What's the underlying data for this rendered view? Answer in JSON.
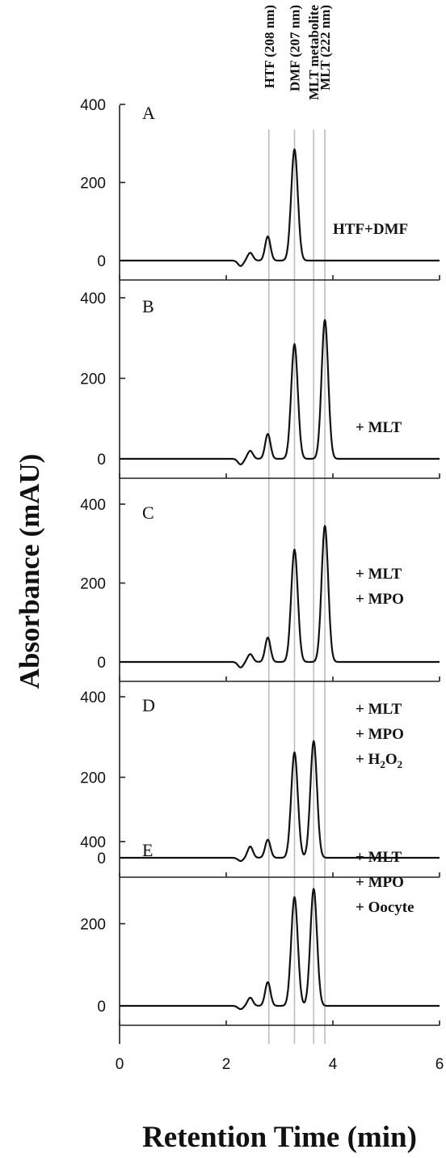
{
  "chart_data": {
    "type": "line",
    "xlabel": "Retention Time (min)",
    "ylabel": "Absorbance (mAU)",
    "xlim": [
      0,
      6
    ],
    "ylim": [
      0,
      400
    ],
    "x_ticks": [
      "0",
      "2",
      "4",
      "6"
    ],
    "y_ticks": [
      "0",
      "200",
      "400"
    ],
    "reference_lines": [
      {
        "label": "HTF (208 nm)",
        "x": 2.8
      },
      {
        "label": "DMF (207 nm)",
        "x": 3.28
      },
      {
        "label": "MLT metabolite",
        "x": 3.64
      },
      {
        "label": "MLT (222 nm)",
        "x": 3.85
      }
    ],
    "panels": [
      {
        "letter": "A",
        "conditions": [
          "HTF+DMF"
        ],
        "peaks": [
          {
            "x": 2.27,
            "y": -14
          },
          {
            "x": 2.45,
            "y": 20
          },
          {
            "x": 2.78,
            "y": 62
          },
          {
            "x": 3.28,
            "y": 285
          }
        ]
      },
      {
        "letter": "B",
        "conditions": [
          "+ MLT"
        ],
        "peaks": [
          {
            "x": 2.27,
            "y": -14
          },
          {
            "x": 2.45,
            "y": 20
          },
          {
            "x": 2.78,
            "y": 62
          },
          {
            "x": 3.28,
            "y": 285
          },
          {
            "x": 3.85,
            "y": 345
          }
        ]
      },
      {
        "letter": "C",
        "conditions": [
          "+ MLT",
          "+ MPO"
        ],
        "peaks": [
          {
            "x": 2.27,
            "y": -14
          },
          {
            "x": 2.45,
            "y": 20
          },
          {
            "x": 2.78,
            "y": 62
          },
          {
            "x": 3.28,
            "y": 285
          },
          {
            "x": 3.85,
            "y": 345
          }
        ]
      },
      {
        "letter": "D",
        "conditions": [
          "+ MLT",
          "+ MPO",
          "+ H2O2"
        ],
        "peaks": [
          {
            "x": 2.27,
            "y": -8
          },
          {
            "x": 2.45,
            "y": 28
          },
          {
            "x": 2.78,
            "y": 45
          },
          {
            "x": 3.28,
            "y": 262
          },
          {
            "x": 3.64,
            "y": 290
          }
        ]
      },
      {
        "letter": "E",
        "conditions": [
          "+ MLT",
          "+ MPO",
          "+ Oocyte"
        ],
        "peaks": [
          {
            "x": 2.27,
            "y": -8
          },
          {
            "x": 2.45,
            "y": 20
          },
          {
            "x": 2.78,
            "y": 58
          },
          {
            "x": 3.28,
            "y": 265
          },
          {
            "x": 3.64,
            "y": 285
          }
        ]
      }
    ]
  }
}
